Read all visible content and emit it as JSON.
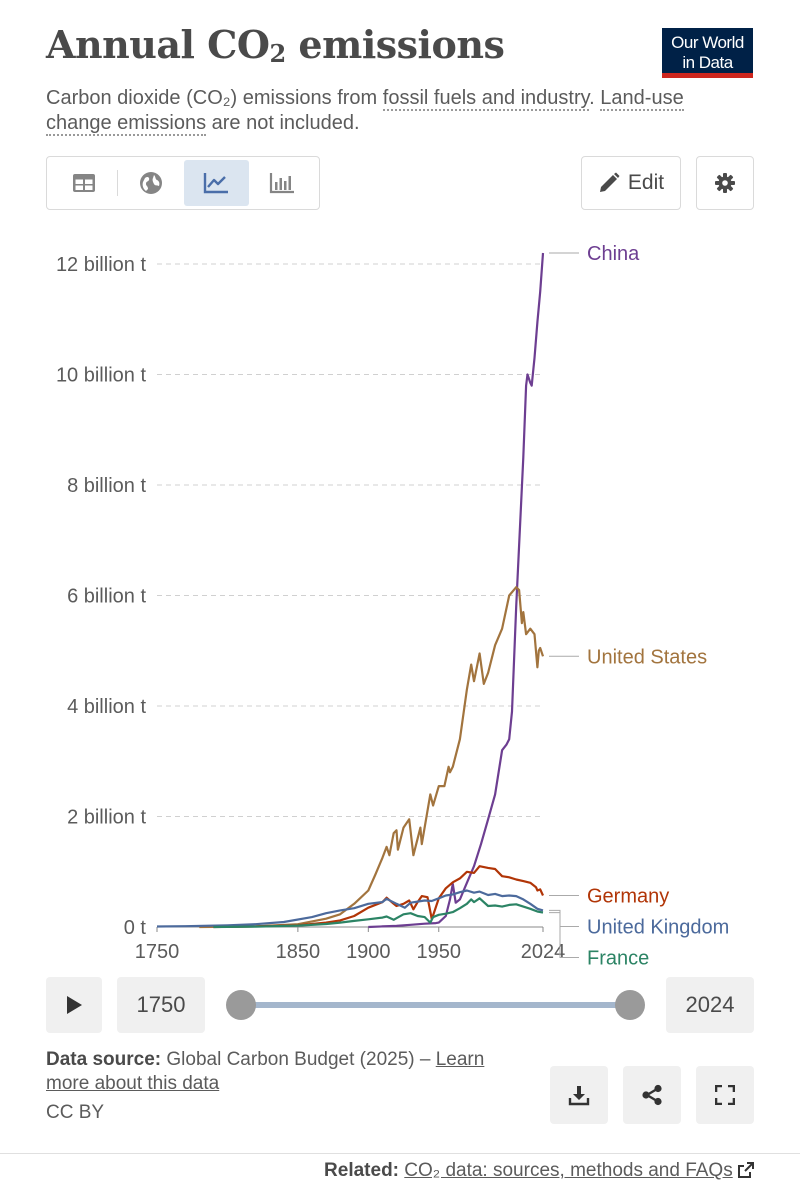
{
  "header": {
    "title_main": "Annual CO",
    "title_sub": "2",
    "title_rest": " emissions",
    "logo_line1": "Our World",
    "logo_line2": "in Data",
    "subtitle_1": "Carbon dioxide (CO₂) emissions from ",
    "subtitle_link1": "fossil fuels and industry",
    "subtitle_2": ". ",
    "subtitle_link2a": "Land-use",
    "subtitle_link2b": "change emissions",
    "subtitle_3": " are not included."
  },
  "toolbar": {
    "tabs": [
      {
        "icon": "table-icon"
      },
      {
        "icon": "globe-icon"
      },
      {
        "icon": "line-chart-icon",
        "active": true
      },
      {
        "icon": "bar-chart-icon"
      }
    ],
    "edit_label": "Edit",
    "settings_icon": "gear-icon"
  },
  "chart_data": {
    "type": "line",
    "title": "Annual CO₂ emissions",
    "ylim": [
      0,
      12200000000
    ],
    "yticks": [
      {
        "value": 0,
        "label": "0 t"
      },
      {
        "value": 2000000000,
        "label": "2 billion t"
      },
      {
        "value": 4000000000,
        "label": "4 billion t"
      },
      {
        "value": 6000000000,
        "label": "6 billion t"
      },
      {
        "value": 8000000000,
        "label": "8 billion t"
      },
      {
        "value": 10000000000,
        "label": "10 billion t"
      },
      {
        "value": 12000000000,
        "label": "12 billion t"
      }
    ],
    "xlim": [
      1750,
      2024
    ],
    "xticks": [
      {
        "value": 1750,
        "label": "1750"
      },
      {
        "value": 1850,
        "label": "1850"
      },
      {
        "value": 1900,
        "label": "1900"
      },
      {
        "value": 1950,
        "label": "1950"
      },
      {
        "value": 2024,
        "label": "2024"
      }
    ],
    "grid": "horizontal-dashed",
    "legend": "right-end-labels",
    "series": [
      {
        "name": "China",
        "color": "#6d3e91",
        "points": [
          [
            1900,
            0
          ],
          [
            1910,
            10000000
          ],
          [
            1920,
            20000000
          ],
          [
            1930,
            40000000
          ],
          [
            1940,
            60000000
          ],
          [
            1948,
            70000000
          ],
          [
            1950,
            80000000
          ],
          [
            1955,
            200000000
          ],
          [
            1958,
            500000000
          ],
          [
            1960,
            780000000
          ],
          [
            1962,
            440000000
          ],
          [
            1965,
            500000000
          ],
          [
            1970,
            800000000
          ],
          [
            1975,
            1100000000
          ],
          [
            1980,
            1500000000
          ],
          [
            1985,
            1950000000
          ],
          [
            1990,
            2400000000
          ],
          [
            1995,
            3200000000
          ],
          [
            1998,
            3300000000
          ],
          [
            2000,
            3400000000
          ],
          [
            2002,
            3900000000
          ],
          [
            2005,
            5800000000
          ],
          [
            2010,
            8500000000
          ],
          [
            2012,
            9800000000
          ],
          [
            2013,
            10000000000
          ],
          [
            2015,
            9850000000
          ],
          [
            2016,
            9800000000
          ],
          [
            2018,
            10300000000
          ],
          [
            2020,
            10950000000
          ],
          [
            2022,
            11500000000
          ],
          [
            2024,
            12200000000
          ]
        ]
      },
      {
        "name": "United States",
        "color": "#a2743e",
        "points": [
          [
            1780,
            0
          ],
          [
            1800,
            3000000
          ],
          [
            1820,
            10000000
          ],
          [
            1850,
            50000000
          ],
          [
            1870,
            150000000
          ],
          [
            1880,
            230000000
          ],
          [
            1890,
            420000000
          ],
          [
            1900,
            660000000
          ],
          [
            1905,
            950000000
          ],
          [
            1910,
            1250000000
          ],
          [
            1913,
            1450000000
          ],
          [
            1915,
            1300000000
          ],
          [
            1918,
            1700000000
          ],
          [
            1920,
            1750000000
          ],
          [
            1921,
            1400000000
          ],
          [
            1925,
            1800000000
          ],
          [
            1929,
            1950000000
          ],
          [
            1932,
            1300000000
          ],
          [
            1937,
            1800000000
          ],
          [
            1938,
            1500000000
          ],
          [
            1944,
            2400000000
          ],
          [
            1946,
            2200000000
          ],
          [
            1950,
            2550000000
          ],
          [
            1954,
            2550000000
          ],
          [
            1957,
            2900000000
          ],
          [
            1958,
            2800000000
          ],
          [
            1960,
            2900000000
          ],
          [
            1965,
            3400000000
          ],
          [
            1970,
            4300000000
          ],
          [
            1973,
            4750000000
          ],
          [
            1975,
            4450000000
          ],
          [
            1979,
            4950000000
          ],
          [
            1982,
            4400000000
          ],
          [
            1985,
            4600000000
          ],
          [
            1990,
            5100000000
          ],
          [
            1995,
            5400000000
          ],
          [
            2000,
            6000000000
          ],
          [
            2005,
            6150000000
          ],
          [
            2007,
            6100000000
          ],
          [
            2009,
            5500000000
          ],
          [
            2010,
            5700000000
          ],
          [
            2012,
            5300000000
          ],
          [
            2015,
            5400000000
          ],
          [
            2018,
            5300000000
          ],
          [
            2020,
            4700000000
          ],
          [
            2021,
            5000000000
          ],
          [
            2022,
            5050000000
          ],
          [
            2024,
            4900000000
          ]
        ]
      },
      {
        "name": "Germany",
        "color": "#b13507",
        "points": [
          [
            1790,
            0
          ],
          [
            1820,
            10000000
          ],
          [
            1850,
            30000000
          ],
          [
            1870,
            80000000
          ],
          [
            1880,
            120000000
          ],
          [
            1890,
            200000000
          ],
          [
            1900,
            350000000
          ],
          [
            1910,
            450000000
          ],
          [
            1913,
            530000000
          ],
          [
            1918,
            420000000
          ],
          [
            1920,
            380000000
          ],
          [
            1925,
            420000000
          ],
          [
            1929,
            480000000
          ],
          [
            1932,
            320000000
          ],
          [
            1935,
            450000000
          ],
          [
            1938,
            560000000
          ],
          [
            1942,
            540000000
          ],
          [
            1945,
            150000000
          ],
          [
            1946,
            210000000
          ],
          [
            1950,
            520000000
          ],
          [
            1955,
            700000000
          ],
          [
            1960,
            810000000
          ],
          [
            1965,
            880000000
          ],
          [
            1970,
            1000000000
          ],
          [
            1975,
            980000000
          ],
          [
            1979,
            1100000000
          ],
          [
            1985,
            1070000000
          ],
          [
            1990,
            1050000000
          ],
          [
            1995,
            920000000
          ],
          [
            2000,
            900000000
          ],
          [
            2005,
            860000000
          ],
          [
            2010,
            830000000
          ],
          [
            2015,
            800000000
          ],
          [
            2019,
            720000000
          ],
          [
            2020,
            660000000
          ],
          [
            2022,
            680000000
          ],
          [
            2024,
            570000000
          ]
        ]
      },
      {
        "name": "United Kingdom",
        "color": "#4c6a9c",
        "points": [
          [
            1750,
            9000000
          ],
          [
            1770,
            15000000
          ],
          [
            1800,
            30000000
          ],
          [
            1820,
            50000000
          ],
          [
            1840,
            90000000
          ],
          [
            1860,
            180000000
          ],
          [
            1870,
            250000000
          ],
          [
            1880,
            300000000
          ],
          [
            1890,
            340000000
          ],
          [
            1900,
            420000000
          ],
          [
            1910,
            450000000
          ],
          [
            1913,
            510000000
          ],
          [
            1920,
            420000000
          ],
          [
            1926,
            350000000
          ],
          [
            1930,
            440000000
          ],
          [
            1940,
            480000000
          ],
          [
            1945,
            470000000
          ],
          [
            1950,
            520000000
          ],
          [
            1955,
            570000000
          ],
          [
            1960,
            590000000
          ],
          [
            1965,
            630000000
          ],
          [
            1970,
            660000000
          ],
          [
            1975,
            620000000
          ],
          [
            1979,
            640000000
          ],
          [
            1985,
            580000000
          ],
          [
            1990,
            600000000
          ],
          [
            1995,
            560000000
          ],
          [
            2000,
            570000000
          ],
          [
            2005,
            560000000
          ],
          [
            2010,
            500000000
          ],
          [
            2015,
            420000000
          ],
          [
            2020,
            330000000
          ],
          [
            2024,
            300000000
          ]
        ]
      },
      {
        "name": "France",
        "color": "#2c8465",
        "points": [
          [
            1790,
            0
          ],
          [
            1820,
            8000000
          ],
          [
            1850,
            25000000
          ],
          [
            1870,
            55000000
          ],
          [
            1880,
            80000000
          ],
          [
            1890,
            110000000
          ],
          [
            1900,
            140000000
          ],
          [
            1910,
            170000000
          ],
          [
            1913,
            190000000
          ],
          [
            1918,
            130000000
          ],
          [
            1920,
            160000000
          ],
          [
            1925,
            230000000
          ],
          [
            1930,
            250000000
          ],
          [
            1935,
            200000000
          ],
          [
            1940,
            180000000
          ],
          [
            1944,
            80000000
          ],
          [
            1946,
            180000000
          ],
          [
            1950,
            220000000
          ],
          [
            1955,
            240000000
          ],
          [
            1960,
            270000000
          ],
          [
            1965,
            340000000
          ],
          [
            1970,
            420000000
          ],
          [
            1973,
            500000000
          ],
          [
            1975,
            450000000
          ],
          [
            1979,
            520000000
          ],
          [
            1985,
            380000000
          ],
          [
            1990,
            390000000
          ],
          [
            1995,
            370000000
          ],
          [
            2000,
            400000000
          ],
          [
            2005,
            410000000
          ],
          [
            2010,
            370000000
          ],
          [
            2015,
            330000000
          ],
          [
            2020,
            280000000
          ],
          [
            2024,
            260000000
          ]
        ]
      }
    ]
  },
  "timeline": {
    "play_icon": "play-icon",
    "start_year": "1750",
    "end_year": "2024",
    "start_value": 1750,
    "end_value": 2024
  },
  "footer": {
    "source_label": "Data source:",
    "source_text": " Global Carbon Budget (2025) – ",
    "source_link_a": "Learn",
    "source_link_b": "more about this data",
    "license": "CC BY",
    "download_icon": "download-icon",
    "share_icon": "share-icon",
    "fullscreen_icon": "fullscreen-icon",
    "related_label": "Related:",
    "related_link": "CO₂ data: sources, methods and FAQs",
    "external_icon": "external-link-icon"
  }
}
